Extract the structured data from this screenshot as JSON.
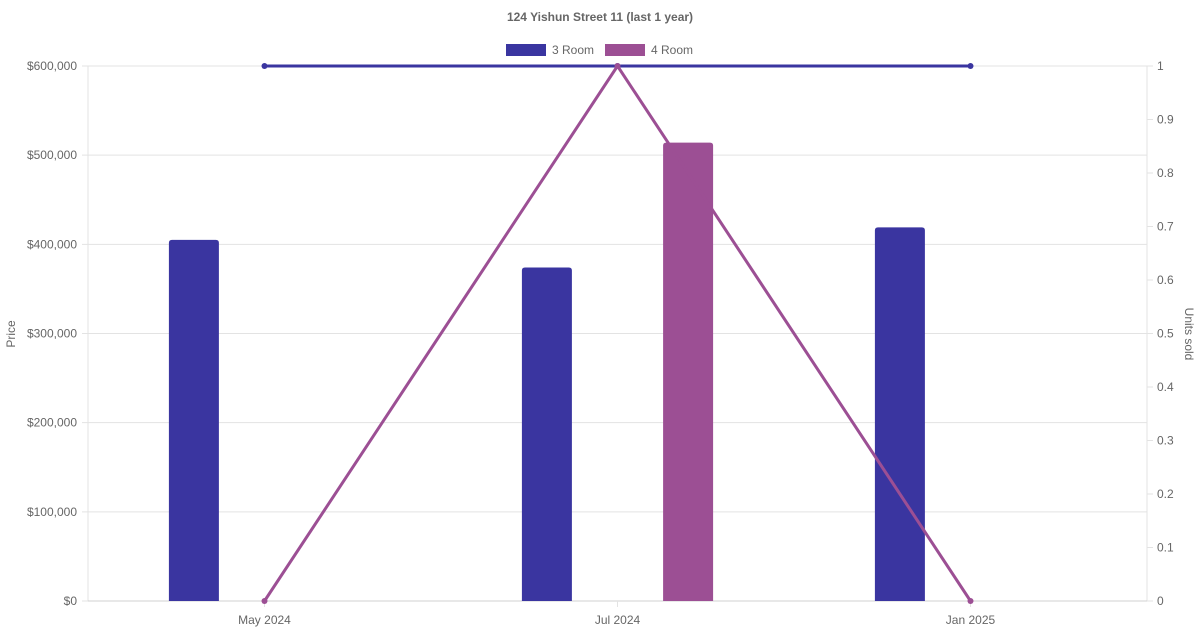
{
  "chart_data": {
    "type": "bar",
    "title": "124 Yishun Street 11 (last 1 year)",
    "categories": [
      "May 2024",
      "Jul 2024",
      "Jan 2025"
    ],
    "series": [
      {
        "name": "3 Room",
        "kind": "bar",
        "axis": "left",
        "color": "#3a35a0",
        "values": [
          405000,
          374000,
          419000
        ]
      },
      {
        "name": "4 Room",
        "kind": "bar",
        "axis": "left",
        "color": "#9c4f94",
        "values": [
          null,
          514000,
          null
        ]
      },
      {
        "name": "3 Room",
        "kind": "line",
        "axis": "right",
        "color": "#3a35a0",
        "values": [
          1,
          1,
          1
        ]
      },
      {
        "name": "4 Room",
        "kind": "line",
        "axis": "right",
        "color": "#9c4f94",
        "values": [
          0,
          1,
          0
        ]
      }
    ],
    "y_left": {
      "label": "Price",
      "min": 0,
      "max": 600000,
      "ticks": [
        0,
        100000,
        200000,
        300000,
        400000,
        500000,
        600000
      ],
      "tick_labels": [
        "$0",
        "$100,000",
        "$200,000",
        "$300,000",
        "$400,000",
        "$500,000",
        "$600,000"
      ]
    },
    "y_right": {
      "label": "Units sold",
      "min": 0,
      "max": 1,
      "ticks": [
        0,
        0.1,
        0.2,
        0.3,
        0.4,
        0.5,
        0.6,
        0.7,
        0.8,
        0.9,
        1
      ],
      "tick_labels": [
        "0",
        "0.1",
        "0.2",
        "0.3",
        "0.4",
        "0.5",
        "0.6",
        "0.7",
        "0.8",
        "0.9",
        "1"
      ]
    },
    "legend": {
      "position": "top",
      "entries": [
        {
          "label": "3 Room",
          "color": "#3a35a0"
        },
        {
          "label": "4 Room",
          "color": "#9c4f94"
        }
      ]
    },
    "grid": true
  }
}
